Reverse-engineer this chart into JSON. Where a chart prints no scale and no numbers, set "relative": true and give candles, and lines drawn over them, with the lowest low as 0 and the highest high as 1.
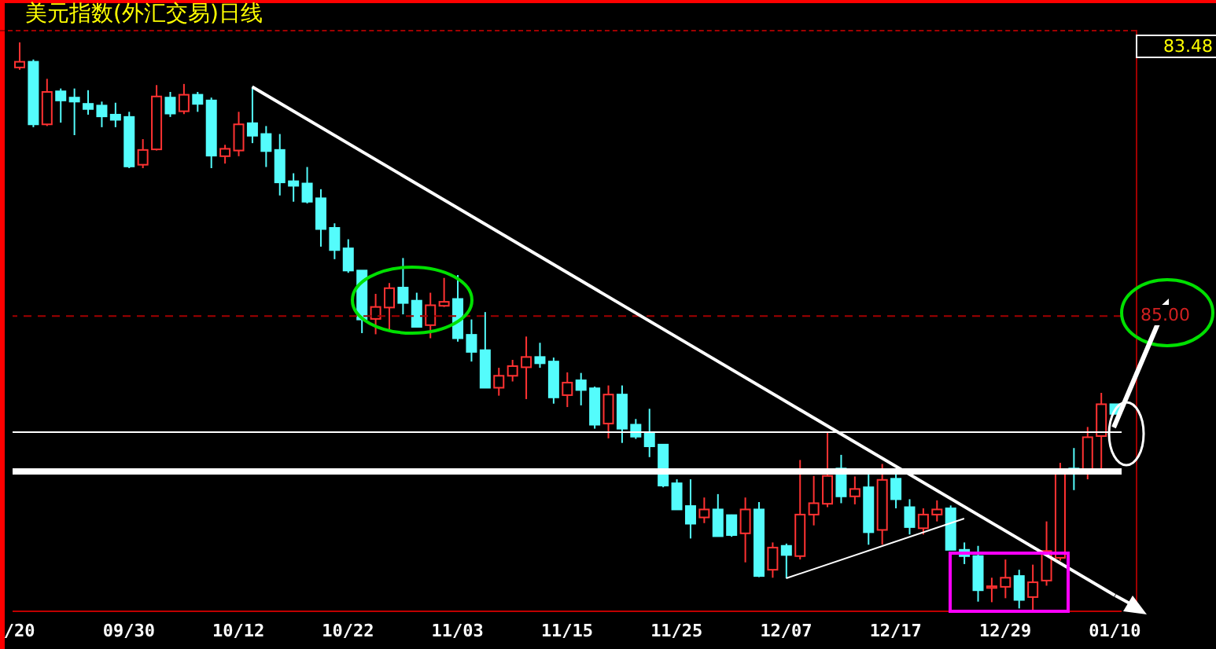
{
  "chart_data": {
    "type": "candlestick",
    "title": "美元指数(外汇交易)日线",
    "relative": true,
    "categories": [
      "/20",
      null,
      null,
      null,
      null,
      null,
      null,
      null,
      "09/30",
      null,
      null,
      null,
      null,
      null,
      null,
      null,
      "10/12",
      null,
      null,
      null,
      null,
      null,
      null,
      null,
      "10/22",
      null,
      null,
      null,
      null,
      null,
      null,
      null,
      "11/03",
      null,
      null,
      null,
      null,
      null,
      null,
      null,
      "11/15",
      null,
      null,
      null,
      null,
      null,
      null,
      null,
      "11/25",
      null,
      null,
      null,
      null,
      null,
      null,
      null,
      "12/07",
      null,
      null,
      null,
      null,
      null,
      null,
      null,
      "12/17",
      null,
      null,
      null,
      null,
      null,
      null,
      null,
      "12/29",
      null,
      null,
      null,
      null,
      null,
      null,
      null,
      "01/10"
    ],
    "ohlc": [
      [
        0.956,
        1.0,
        0.952,
        0.966
      ],
      [
        0.966,
        0.97,
        0.851,
        0.856
      ],
      [
        0.856,
        0.936,
        0.853,
        0.913
      ],
      [
        0.914,
        0.919,
        0.859,
        0.898
      ],
      [
        0.903,
        0.919,
        0.837,
        0.896
      ],
      [
        0.892,
        0.916,
        0.873,
        0.883
      ],
      [
        0.889,
        0.896,
        0.851,
        0.87
      ],
      [
        0.873,
        0.894,
        0.851,
        0.864
      ],
      [
        0.869,
        0.878,
        0.779,
        0.782
      ],
      [
        0.785,
        0.83,
        0.779,
        0.811
      ],
      [
        0.812,
        0.925,
        0.81,
        0.905
      ],
      [
        0.903,
        0.913,
        0.869,
        0.875
      ],
      [
        0.879,
        0.927,
        0.874,
        0.908
      ],
      [
        0.908,
        0.913,
        0.878,
        0.892
      ],
      [
        0.898,
        0.903,
        0.779,
        0.801
      ],
      [
        0.8,
        0.82,
        0.787,
        0.813
      ],
      [
        0.81,
        0.878,
        0.8,
        0.856
      ],
      [
        0.858,
        0.922,
        0.823,
        0.836
      ],
      [
        0.839,
        0.853,
        0.781,
        0.809
      ],
      [
        0.811,
        0.839,
        0.731,
        0.754
      ],
      [
        0.756,
        0.77,
        0.72,
        0.748
      ],
      [
        0.752,
        0.781,
        0.717,
        0.72
      ],
      [
        0.726,
        0.742,
        0.641,
        0.672
      ],
      [
        0.674,
        0.682,
        0.619,
        0.635
      ],
      [
        0.638,
        0.654,
        0.595,
        0.599
      ],
      [
        0.599,
        0.599,
        0.489,
        0.513
      ],
      [
        0.514,
        0.558,
        0.487,
        0.535
      ],
      [
        0.534,
        0.577,
        0.494,
        0.568
      ],
      [
        0.569,
        0.621,
        0.522,
        0.542
      ],
      [
        0.546,
        0.56,
        0.5,
        0.5
      ],
      [
        0.503,
        0.56,
        0.48,
        0.538
      ],
      [
        0.537,
        0.586,
        0.535,
        0.544
      ],
      [
        0.549,
        0.591,
        0.474,
        0.48
      ],
      [
        0.486,
        0.513,
        0.439,
        0.456
      ],
      [
        0.459,
        0.526,
        0.393,
        0.393
      ],
      [
        0.393,
        0.428,
        0.379,
        0.414
      ],
      [
        0.414,
        0.442,
        0.404,
        0.431
      ],
      [
        0.429,
        0.483,
        0.373,
        0.447
      ],
      [
        0.447,
        0.472,
        0.428,
        0.436
      ],
      [
        0.439,
        0.446,
        0.365,
        0.376
      ],
      [
        0.38,
        0.42,
        0.359,
        0.402
      ],
      [
        0.406,
        0.419,
        0.362,
        0.389
      ],
      [
        0.392,
        0.395,
        0.321,
        0.328
      ],
      [
        0.33,
        0.397,
        0.304,
        0.381
      ],
      [
        0.381,
        0.397,
        0.296,
        0.321
      ],
      [
        0.328,
        0.338,
        0.303,
        0.307
      ],
      [
        0.313,
        0.356,
        0.271,
        0.29
      ],
      [
        0.293,
        0.293,
        0.218,
        0.221
      ],
      [
        0.225,
        0.232,
        0.179,
        0.179
      ],
      [
        0.185,
        0.232,
        0.128,
        0.154
      ],
      [
        0.165,
        0.2,
        0.155,
        0.179
      ],
      [
        0.179,
        0.206,
        0.132,
        0.132
      ],
      [
        0.169,
        0.17,
        0.131,
        0.134
      ],
      [
        0.137,
        0.2,
        0.086,
        0.179
      ],
      [
        0.179,
        0.192,
        0.06,
        0.062
      ],
      [
        0.073,
        0.121,
        0.059,
        0.112
      ],
      [
        0.115,
        0.119,
        0.058,
        0.099
      ],
      [
        0.097,
        0.266,
        0.091,
        0.17
      ],
      [
        0.17,
        0.238,
        0.151,
        0.19
      ],
      [
        0.189,
        0.315,
        0.183,
        0.238
      ],
      [
        0.251,
        0.275,
        0.19,
        0.202
      ],
      [
        0.202,
        0.237,
        0.188,
        0.215
      ],
      [
        0.218,
        0.248,
        0.117,
        0.139
      ],
      [
        0.143,
        0.259,
        0.117,
        0.231
      ],
      [
        0.233,
        0.246,
        0.181,
        0.197
      ],
      [
        0.183,
        0.197,
        0.135,
        0.148
      ],
      [
        0.146,
        0.181,
        0.135,
        0.17
      ],
      [
        0.17,
        0.195,
        0.158,
        0.179
      ],
      [
        0.181,
        0.186,
        0.108,
        0.108
      ],
      [
        0.108,
        0.121,
        0.083,
        0.097
      ],
      [
        0.097,
        0.115,
        0.017,
        0.037
      ],
      [
        0.041,
        0.059,
        0.016,
        0.044
      ],
      [
        0.043,
        0.091,
        0.023,
        0.059
      ],
      [
        0.062,
        0.073,
        0.005,
        0.02
      ],
      [
        0.025,
        0.082,
        0.0,
        0.051
      ],
      [
        0.054,
        0.158,
        0.045,
        0.106
      ],
      [
        0.094,
        0.261,
        0.089,
        0.246
      ],
      [
        0.251,
        0.287,
        0.213,
        0.246
      ],
      [
        0.25,
        0.324,
        0.232,
        0.306
      ],
      [
        0.308,
        0.384,
        0.25,
        0.364
      ],
      [
        0.364,
        0.364,
        0.347,
        0.347
      ]
    ],
    "colors": [
      "#ff3232",
      "#54fcfc",
      "#ff3232",
      "#54fcfc",
      "#54fcfc",
      "#54fcfc",
      "#54fcfc",
      "#54fcfc",
      "#54fcfc",
      "#ff3232",
      "#ff3232",
      "#54fcfc",
      "#ff3232",
      "#54fcfc",
      "#54fcfc",
      "#ff3232",
      "#ff3232",
      "#54fcfc",
      "#54fcfc",
      "#54fcfc",
      "#54fcfc",
      "#54fcfc",
      "#54fcfc",
      "#54fcfc",
      "#54fcfc",
      "#54fcfc",
      "#ff3232",
      "#ff3232",
      "#54fcfc",
      "#54fcfc",
      "#ff3232",
      "#ff3232",
      "#54fcfc",
      "#54fcfc",
      "#54fcfc",
      "#ff3232",
      "#ff3232",
      "#ff3232",
      "#54fcfc",
      "#54fcfc",
      "#ff3232",
      "#54fcfc",
      "#54fcfc",
      "#ff3232",
      "#54fcfc",
      "#54fcfc",
      "#54fcfc",
      "#54fcfc",
      "#54fcfc",
      "#54fcfc",
      "#ff3232",
      "#54fcfc",
      "#54fcfc",
      "#ff3232",
      "#54fcfc",
      "#ff3232",
      "#54fcfc",
      "#ff3232",
      "#ff3232",
      "#ff3232",
      "#54fcfc",
      "#ff3232",
      "#54fcfc",
      "#ff3232",
      "#54fcfc",
      "#54fcfc",
      "#ff3232",
      "#ff3232",
      "#54fcfc",
      "#54fcfc",
      "#54fcfc",
      "#ff3232",
      "#ff3232",
      "#54fcfc",
      "#ff3232",
      "#ff3232",
      "#ff3232",
      "#54fcfc",
      "#ff3232",
      "#ff3232",
      "#54fcfc"
    ],
    "series": [
      {
        "type": "line",
        "color": "#ffffff",
        "values": [
          null,
          null,
          null,
          null,
          null,
          null,
          null,
          null,
          null,
          null,
          null,
          null,
          null,
          null,
          null,
          null,
          null,
          0.922,
          null,
          null,
          null,
          null,
          null,
          null,
          null,
          null,
          null,
          null,
          null,
          null,
          null,
          null,
          null,
          null,
          null,
          null,
          null,
          null,
          null,
          null,
          null,
          null,
          null,
          null,
          null,
          null,
          null,
          null,
          null,
          null,
          null,
          null,
          null,
          null,
          null,
          null,
          null,
          null,
          null,
          null,
          null,
          null,
          null,
          null,
          null,
          null,
          null,
          null,
          null,
          null,
          null,
          null,
          null,
          null,
          null,
          null,
          null,
          null,
          null,
          null,
          0.028
        ]
      },
      {
        "type": "line",
        "color": "#ffffff",
        "values": [
          null,
          null,
          null,
          null,
          null,
          null,
          null,
          null,
          null,
          null,
          null,
          null,
          null,
          null,
          null,
          null,
          null,
          null,
          null,
          null,
          null,
          null,
          null,
          null,
          null,
          null,
          null,
          null,
          null,
          null,
          null,
          null,
          null,
          null,
          null,
          null,
          null,
          null,
          null,
          null,
          null,
          null,
          null,
          null,
          null,
          null,
          null,
          null,
          null,
          null,
          null,
          null,
          null,
          null,
          null,
          null,
          0.058,
          null,
          null,
          null,
          null,
          null,
          null,
          null,
          null,
          null,
          null,
          null,
          null,
          0.163,
          null,
          null,
          null,
          null,
          null,
          null,
          null,
          null,
          null,
          null,
          null
        ]
      }
    ],
    "ref_lines": [
      {
        "axis": "y",
        "value": 0.519,
        "color": "#a00000",
        "line_style": "dashed"
      },
      {
        "axis": "y",
        "value": 0.315,
        "color": "#ffffff",
        "line_style": "solid"
      },
      {
        "axis": "y",
        "value": 0.246,
        "color": "#ffffff",
        "line_style": "solid"
      }
    ],
    "annotations": [
      "83.48",
      "85.00"
    ]
  }
}
